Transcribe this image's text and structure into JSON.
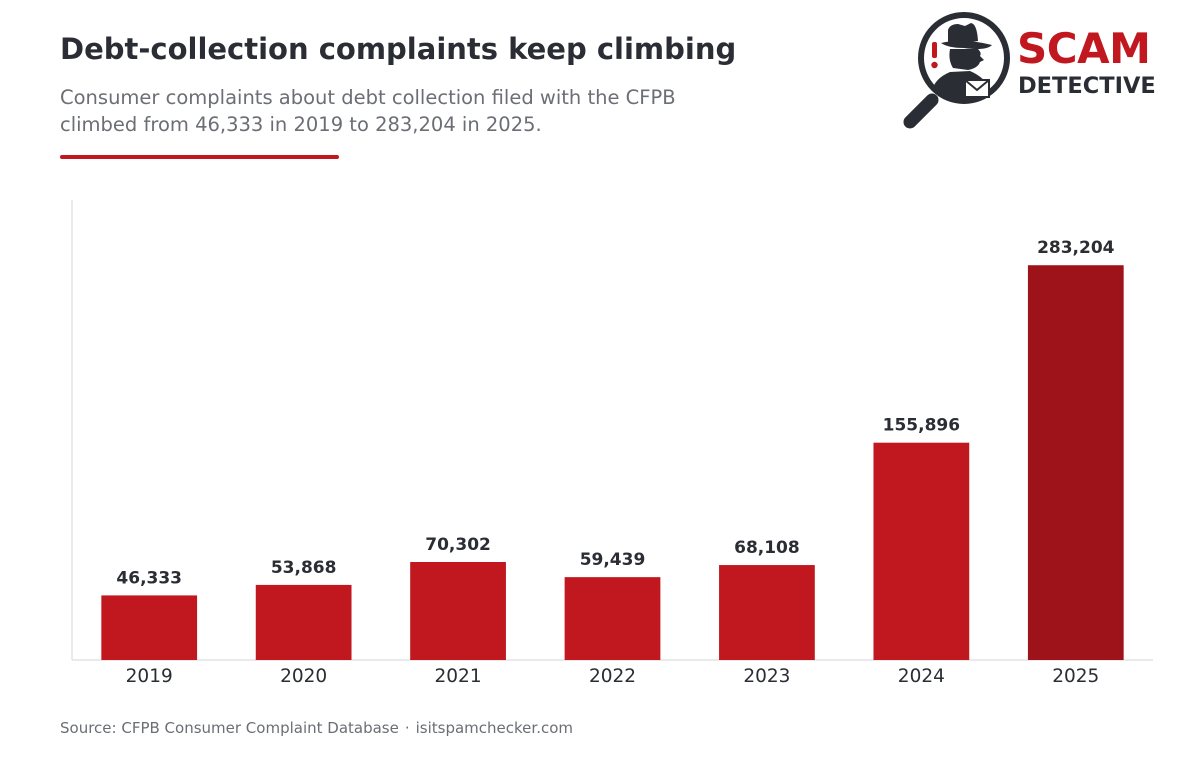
{
  "header": {
    "title": "Debt-collection complaints keep climbing",
    "subtitle_line1": "Consumer complaints about debt collection filed with the CFPB",
    "subtitle_line2": "climbed from 46,333 in 2019 to 283,204 in 2025."
  },
  "logo": {
    "word1": "SCAM",
    "word2": "DETECTIVE",
    "icon": "detective-magnifier-icon"
  },
  "colors": {
    "accent": "#c1171f",
    "highlight_bar": "#9e121a",
    "text_dark": "#2a2d33",
    "text_muted": "#6b6e74",
    "axis": "#dddddd"
  },
  "chart_data": {
    "type": "bar",
    "title": "Debt-collection complaints keep climbing",
    "categories": [
      "2019",
      "2020",
      "2021",
      "2022",
      "2023",
      "2024",
      "2025"
    ],
    "values": [
      46333,
      53868,
      70302,
      59439,
      68108,
      155896,
      283204
    ],
    "value_labels": [
      "46,333",
      "53,868",
      "70,302",
      "59,439",
      "68,108",
      "155,896",
      "283,204"
    ],
    "highlight_index": 6,
    "ylim": [
      0,
      330000
    ],
    "grid": false,
    "y_axis_ticks": false
  },
  "footer": {
    "source": "Source: CFPB Consumer Complaint Database",
    "separator": "·",
    "site": "isitspamchecker.com"
  }
}
